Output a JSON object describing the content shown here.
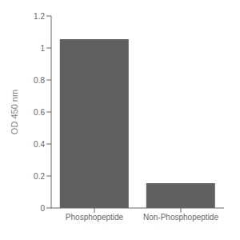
{
  "chart_data": {
    "type": "bar",
    "categories": [
      "Phosphopeptide",
      "Non-Phosphopeptide"
    ],
    "values": [
      1.055,
      0.155
    ],
    "color": "#606060",
    "ylabel": "OD 450 nm",
    "ylim": [
      0,
      1.2
    ],
    "yticks": [
      0,
      0.2,
      0.4,
      0.6,
      0.8,
      1,
      1.2
    ],
    "grid": false
  }
}
